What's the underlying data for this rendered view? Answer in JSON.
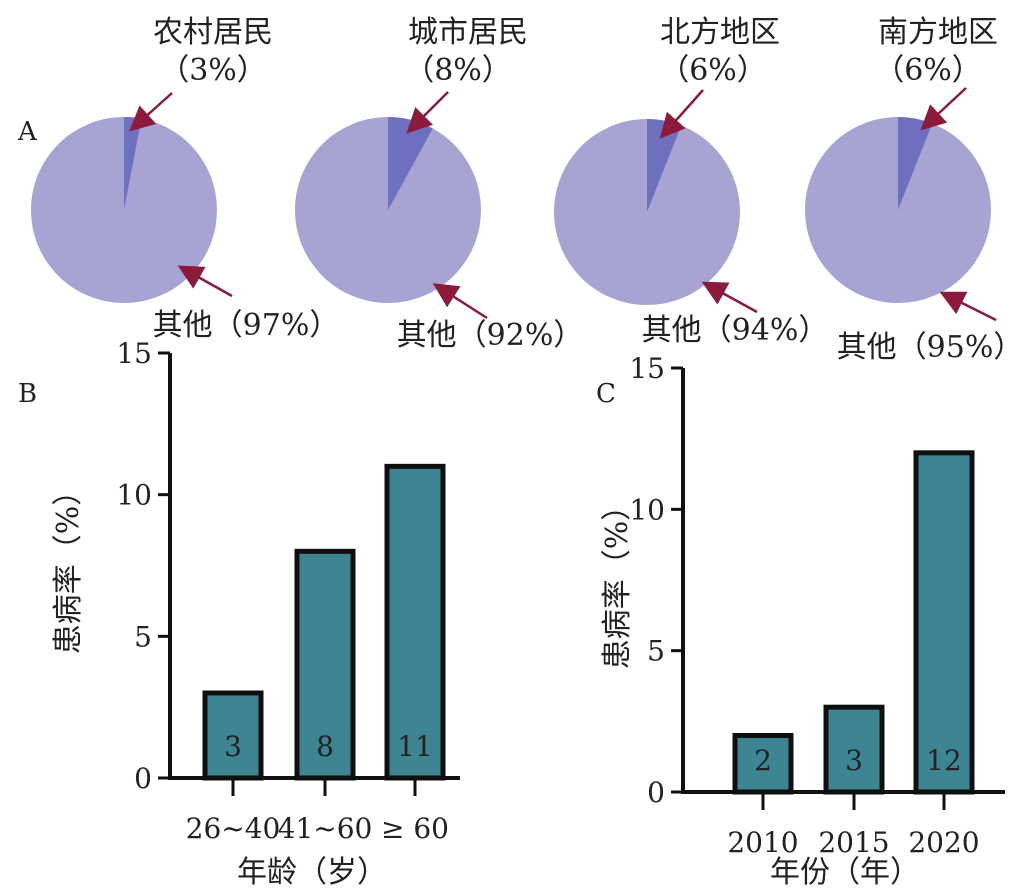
{
  "panels": {
    "a": "A",
    "b": "B",
    "c": "C"
  },
  "colors": {
    "pie_other": "#a7a3d2",
    "pie_group": "#6f6fc0",
    "arrow": "#8b1a3b",
    "bar_fill": "#3d8593",
    "bar_stroke": "#0f0f0f",
    "axis": "#111111"
  },
  "chart_data": [
    {
      "type": "pie",
      "panel": "A",
      "slices": [
        {
          "name": "农村居民",
          "label": "（3%）",
          "value": 3
        },
        {
          "name": "其他",
          "label": "其他（97%）",
          "value": 97
        }
      ]
    },
    {
      "type": "pie",
      "panel": "A",
      "slices": [
        {
          "name": "城市居民",
          "label": "（8%）",
          "value": 8
        },
        {
          "name": "其他",
          "label": "其他（92%）",
          "value": 92
        }
      ]
    },
    {
      "type": "pie",
      "panel": "A",
      "slices": [
        {
          "name": "北方地区",
          "label": "（6%）",
          "value": 6
        },
        {
          "name": "其他",
          "label": "其他（94%）",
          "value": 94
        }
      ]
    },
    {
      "type": "pie",
      "panel": "A",
      "slices": [
        {
          "name": "南方地区",
          "label": "（6%）",
          "value": 6
        },
        {
          "name": "其他",
          "label": "其他（95%）",
          "value": 95
        }
      ]
    },
    {
      "type": "bar",
      "panel": "B",
      "categories": [
        "26~40",
        "41~60",
        "≥ 60"
      ],
      "values": [
        3,
        8,
        11
      ],
      "data_labels": [
        "3",
        "8",
        "11"
      ],
      "xlabel": "年龄（岁）",
      "ylabel": "患病率（%）",
      "ylim": [
        0,
        15
      ],
      "yticks": [
        "0",
        "5",
        "10",
        "15"
      ],
      "grid": false
    },
    {
      "type": "bar",
      "panel": "C",
      "categories": [
        "2010",
        "2015",
        "2020"
      ],
      "values": [
        2,
        3,
        12
      ],
      "data_labels": [
        "2",
        "3",
        "12"
      ],
      "xlabel": "年份（年）",
      "ylabel": "患病率（%）",
      "ylim": [
        0,
        15
      ],
      "yticks": [
        "0",
        "5",
        "10",
        "15"
      ],
      "grid": false
    }
  ]
}
